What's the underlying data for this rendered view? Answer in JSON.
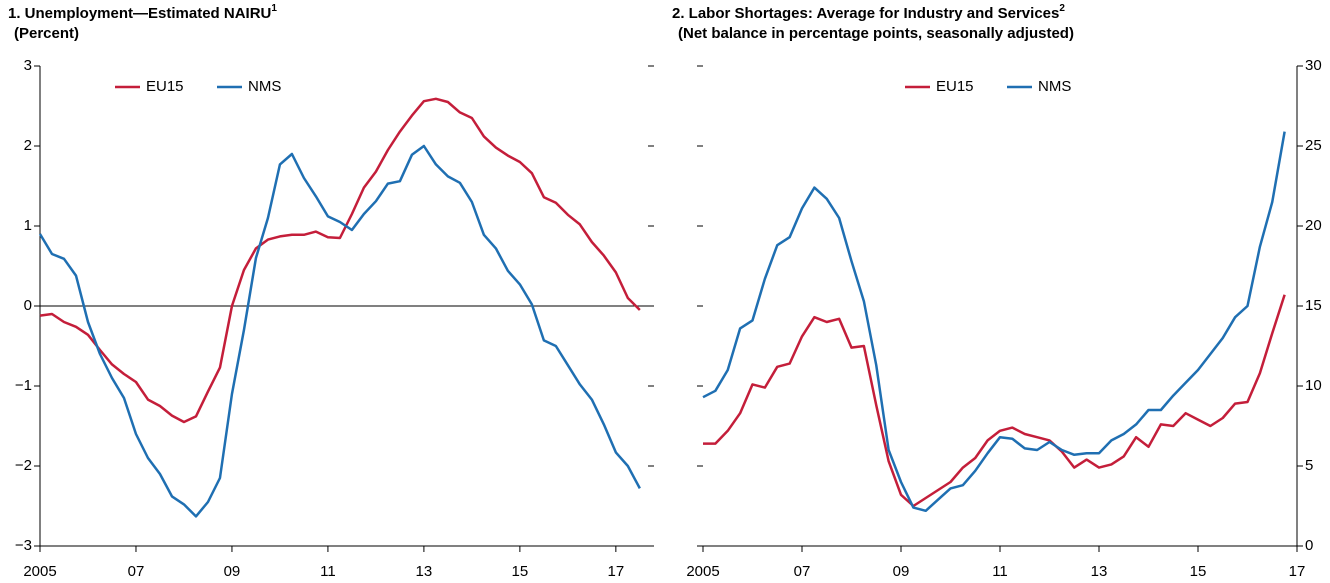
{
  "chart_data": [
    {
      "type": "line",
      "title": "1. Unemployment—Estimated NAIRU",
      "title_note": "1",
      "subtitle": "(Percent)",
      "x": [
        2005,
        2005.25,
        2005.5,
        2005.75,
        2006,
        2006.25,
        2006.5,
        2006.75,
        2007,
        2007.25,
        2007.5,
        2007.75,
        2008,
        2008.25,
        2008.5,
        2008.75,
        2009,
        2009.25,
        2009.5,
        2009.75,
        2010,
        2010.25,
        2010.5,
        2010.75,
        2011,
        2011.25,
        2011.5,
        2011.75,
        2012,
        2012.25,
        2012.5,
        2012.75,
        2013,
        2013.25,
        2013.5,
        2013.75,
        2014,
        2014.25,
        2014.5,
        2014.75,
        2015,
        2015.25,
        2015.5,
        2015.75,
        2016,
        2016.25,
        2016.5,
        2016.75,
        2017,
        2017.25,
        2017.5
      ],
      "series": [
        {
          "name": "EU15",
          "color": "#c41e3a",
          "values": [
            -0.12,
            -0.1,
            -0.2,
            -0.26,
            -0.36,
            -0.55,
            -0.73,
            -0.85,
            -0.95,
            -1.17,
            -1.25,
            -1.37,
            -1.45,
            -1.38,
            -1.07,
            -0.77,
            0.0,
            0.45,
            0.72,
            0.83,
            0.87,
            0.89,
            0.89,
            0.93,
            0.86,
            0.85,
            1.15,
            1.48,
            1.68,
            1.95,
            2.18,
            2.38,
            2.56,
            2.59,
            2.55,
            2.42,
            2.35,
            2.12,
            1.98,
            1.88,
            1.8,
            1.66,
            1.36,
            1.29,
            1.14,
            1.02,
            0.8,
            0.63,
            0.42,
            0.1,
            -0.05
          ]
        },
        {
          "name": "NMS",
          "color": "#1f6fb2",
          "values": [
            0.9,
            0.65,
            0.59,
            0.38,
            -0.2,
            -0.6,
            -0.9,
            -1.15,
            -1.6,
            -1.9,
            -2.1,
            -2.38,
            -2.48,
            -2.63,
            -2.45,
            -2.15,
            -1.1,
            -0.3,
            0.6,
            1.1,
            1.77,
            1.9,
            1.6,
            1.37,
            1.12,
            1.05,
            0.95,
            1.15,
            1.31,
            1.53,
            1.56,
            1.89,
            2.0,
            1.77,
            1.62,
            1.54,
            1.3,
            0.89,
            0.72,
            0.44,
            0.27,
            0.02,
            -0.43,
            -0.5,
            -0.74,
            -0.98,
            -1.17,
            -1.48,
            -1.83,
            -2.0,
            -2.28
          ]
        }
      ],
      "xlim": [
        2005,
        2017.67
      ],
      "xticks": [
        {
          "value": 2005,
          "label": "2005"
        },
        {
          "value": 2007,
          "label": "07"
        },
        {
          "value": 2009,
          "label": "09"
        },
        {
          "value": 2011,
          "label": "11"
        },
        {
          "value": 2013,
          "label": "13"
        },
        {
          "value": 2015,
          "label": "15"
        },
        {
          "value": 2017,
          "label": "17"
        }
      ],
      "ylim": [
        -3,
        3
      ],
      "yticks": [
        {
          "value": -3,
          "label": "−3"
        },
        {
          "value": -2,
          "label": "−2"
        },
        {
          "value": -1,
          "label": "−1"
        },
        0,
        1,
        2,
        3
      ],
      "ytick_labels_side": "left",
      "zero_line": true,
      "legend": "upper left"
    },
    {
      "type": "line",
      "title": "2. Labor Shortages: Average for Industry and Services",
      "title_note": "2",
      "subtitle": "(Net balance in percentage points, seasonally adjusted)",
      "x": [
        2005,
        2005.25,
        2005.5,
        2005.75,
        2006,
        2006.25,
        2006.5,
        2006.75,
        2007,
        2007.25,
        2007.5,
        2007.75,
        2008,
        2008.25,
        2008.5,
        2008.75,
        2009,
        2009.25,
        2009.5,
        2009.75,
        2010,
        2010.25,
        2010.5,
        2010.75,
        2011,
        2011.25,
        2011.5,
        2011.75,
        2012,
        2012.25,
        2012.5,
        2012.75,
        2013,
        2013.25,
        2013.5,
        2013.75,
        2014,
        2014.25,
        2014.5,
        2014.75,
        2015,
        2015.25,
        2015.5,
        2015.75,
        2016,
        2016.25,
        2016.5,
        2016.75
      ],
      "series": [
        {
          "name": "EU15",
          "color": "#c41e3a",
          "values": [
            6.4,
            6.4,
            7.2,
            8.3,
            10.1,
            9.9,
            11.2,
            11.4,
            13.1,
            14.3,
            14.0,
            14.2,
            12.4,
            12.5,
            8.8,
            5.3,
            3.2,
            2.5,
            3.0,
            3.5,
            4.0,
            4.9,
            5.5,
            6.6,
            7.2,
            7.4,
            7.0,
            6.8,
            6.6,
            5.9,
            4.9,
            5.4,
            4.9,
            5.1,
            5.6,
            6.8,
            6.2,
            7.6,
            7.5,
            8.3,
            7.9,
            7.5,
            8.0,
            8.9,
            9.0,
            10.8,
            13.3,
            15.7
          ]
        },
        {
          "name": "NMS",
          "color": "#1f6fb2",
          "values": [
            9.3,
            9.7,
            11.0,
            13.6,
            14.1,
            16.7,
            18.8,
            19.3,
            21.1,
            22.4,
            21.7,
            20.5,
            17.8,
            15.3,
            11.3,
            6.0,
            4.0,
            2.4,
            2.2,
            2.9,
            3.6,
            3.8,
            4.7,
            5.8,
            6.8,
            6.7,
            6.1,
            6.0,
            6.5,
            6.0,
            5.7,
            5.8,
            5.8,
            6.6,
            7.0,
            7.6,
            8.5,
            8.5,
            9.4,
            10.2,
            11.0,
            12.0,
            13.0,
            14.3,
            15.0,
            18.7,
            21.5,
            25.9
          ]
        }
      ],
      "xlim": [
        2005,
        2017
      ],
      "xticks": [
        {
          "value": 2005,
          "label": "2005"
        },
        {
          "value": 2007,
          "label": "07"
        },
        {
          "value": 2009,
          "label": "09"
        },
        {
          "value": 2011,
          "label": "11"
        },
        {
          "value": 2013,
          "label": "13"
        },
        {
          "value": 2015,
          "label": "15"
        },
        {
          "value": 2017,
          "label": "17"
        }
      ],
      "ylim": [
        0,
        30
      ],
      "yticks": [
        0,
        5,
        10,
        15,
        20,
        25,
        30
      ],
      "ytick_labels_side": "right",
      "zero_line": false,
      "legend": "upper center"
    }
  ]
}
